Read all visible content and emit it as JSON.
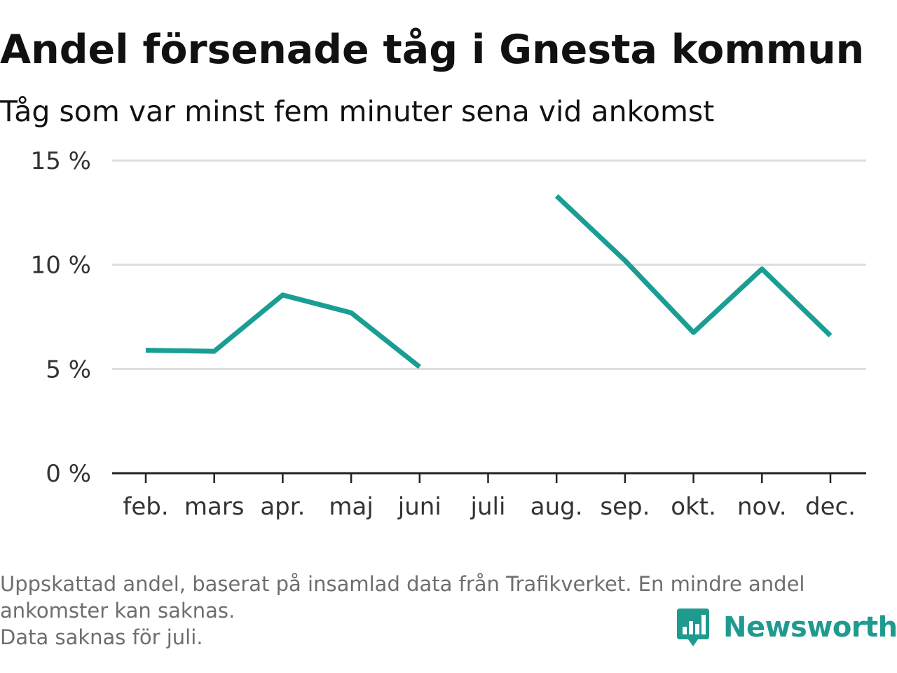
{
  "title": "Andel försenade tåg i Gnesta kommun",
  "subtitle": "Tåg som var minst fem minuter sena vid ankomst",
  "colors": {
    "line": "#1a9e94",
    "grid": "#dddddd",
    "axis": "#222222",
    "brand": "#1f9a8f",
    "footnote": "#6e6e6e"
  },
  "chart_data": {
    "type": "line",
    "categories": [
      "feb.",
      "mars",
      "apr.",
      "maj",
      "juni",
      "juli",
      "aug.",
      "sep.",
      "okt.",
      "nov.",
      "dec."
    ],
    "series": [
      {
        "values": [
          5.9,
          5.85,
          8.55,
          7.7,
          5.1,
          null,
          13.3,
          10.2,
          6.75,
          9.8,
          6.6
        ]
      }
    ],
    "yticks": [
      "0 %",
      "5 %",
      "10 %",
      "15 %"
    ],
    "ylim": [
      0,
      15
    ],
    "grid": true,
    "xlabel": "",
    "ylabel": ""
  },
  "footnote": {
    "line1": "Uppskattad andel, baserat på insamlad data från Trafikverket. En mindre andel",
    "line2": "ankomster kan saknas.",
    "line3": "Data saknas för juli."
  },
  "brand": {
    "name": "Newsworthy",
    "icon": "newsworthy-logo-icon"
  }
}
